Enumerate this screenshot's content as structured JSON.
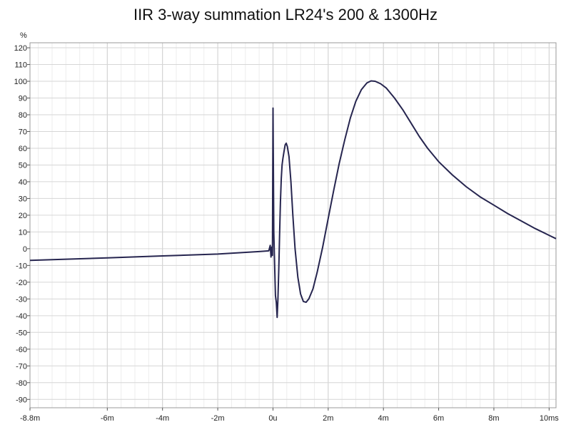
{
  "chart_data": {
    "type": "line",
    "title": "IIR 3-way summation LR24's 200 & 1300Hz",
    "y_unit_label": "%",
    "xlim": [
      -8.8,
      10.25
    ],
    "ylim": [
      -95,
      123
    ],
    "x_ticks": [
      {
        "value": -8.8,
        "label": "-8.8m"
      },
      {
        "value": -6,
        "label": "-6m"
      },
      {
        "value": -4,
        "label": "-4m"
      },
      {
        "value": -2,
        "label": "-2m"
      },
      {
        "value": 0,
        "label": "0u"
      },
      {
        "value": 2,
        "label": "2m"
      },
      {
        "value": 4,
        "label": "4m"
      },
      {
        "value": 6,
        "label": "6m"
      },
      {
        "value": 8,
        "label": "8m"
      },
      {
        "value": 10,
        "label": "10ms"
      }
    ],
    "y_ticks": [
      120,
      110,
      100,
      90,
      80,
      70,
      60,
      50,
      40,
      30,
      20,
      10,
      0,
      -10,
      -20,
      -30,
      -40,
      -50,
      -60,
      -70,
      -80,
      -90
    ],
    "x_minor_step": 0.5,
    "grid": true,
    "line_color": "#26254f",
    "series": [
      {
        "name": "",
        "points": [
          [
            -8.8,
            -7
          ],
          [
            -6,
            -5.5
          ],
          [
            -4,
            -4.3
          ],
          [
            -2,
            -3.2
          ],
          [
            -0.5,
            -1.7
          ],
          [
            -0.15,
            -1.3
          ],
          [
            -0.1,
            2
          ],
          [
            -0.07,
            -5
          ],
          [
            -0.04,
            1
          ],
          [
            -0.02,
            -4
          ],
          [
            0.0,
            84
          ],
          [
            0.03,
            10
          ],
          [
            0.06,
            -10
          ],
          [
            0.09,
            -28
          ],
          [
            0.12,
            -32
          ],
          [
            0.15,
            -41
          ],
          [
            0.18,
            -30
          ],
          [
            0.21,
            -12
          ],
          [
            0.24,
            8
          ],
          [
            0.27,
            28
          ],
          [
            0.3,
            42
          ],
          [
            0.33,
            50
          ],
          [
            0.36,
            54
          ],
          [
            0.4,
            58
          ],
          [
            0.44,
            62
          ],
          [
            0.48,
            63
          ],
          [
            0.52,
            61
          ],
          [
            0.58,
            55
          ],
          [
            0.65,
            40
          ],
          [
            0.72,
            20
          ],
          [
            0.8,
            0
          ],
          [
            0.9,
            -17
          ],
          [
            1.0,
            -27
          ],
          [
            1.1,
            -31.5
          ],
          [
            1.2,
            -32
          ],
          [
            1.3,
            -30
          ],
          [
            1.45,
            -24
          ],
          [
            1.6,
            -14
          ],
          [
            1.8,
            1
          ],
          [
            2.0,
            18
          ],
          [
            2.2,
            35
          ],
          [
            2.4,
            51
          ],
          [
            2.6,
            65
          ],
          [
            2.8,
            78
          ],
          [
            3.0,
            88
          ],
          [
            3.2,
            95
          ],
          [
            3.4,
            99
          ],
          [
            3.55,
            100.2
          ],
          [
            3.7,
            100
          ],
          [
            3.9,
            98.5
          ],
          [
            4.1,
            96
          ],
          [
            4.4,
            90
          ],
          [
            4.7,
            83
          ],
          [
            5.0,
            75
          ],
          [
            5.3,
            67
          ],
          [
            5.6,
            60
          ],
          [
            6.0,
            52
          ],
          [
            6.5,
            44
          ],
          [
            7.0,
            37
          ],
          [
            7.5,
            31
          ],
          [
            8.0,
            26
          ],
          [
            8.5,
            21
          ],
          [
            9.0,
            16.5
          ],
          [
            9.5,
            12
          ],
          [
            10.0,
            8
          ],
          [
            10.25,
            6
          ]
        ]
      }
    ]
  }
}
